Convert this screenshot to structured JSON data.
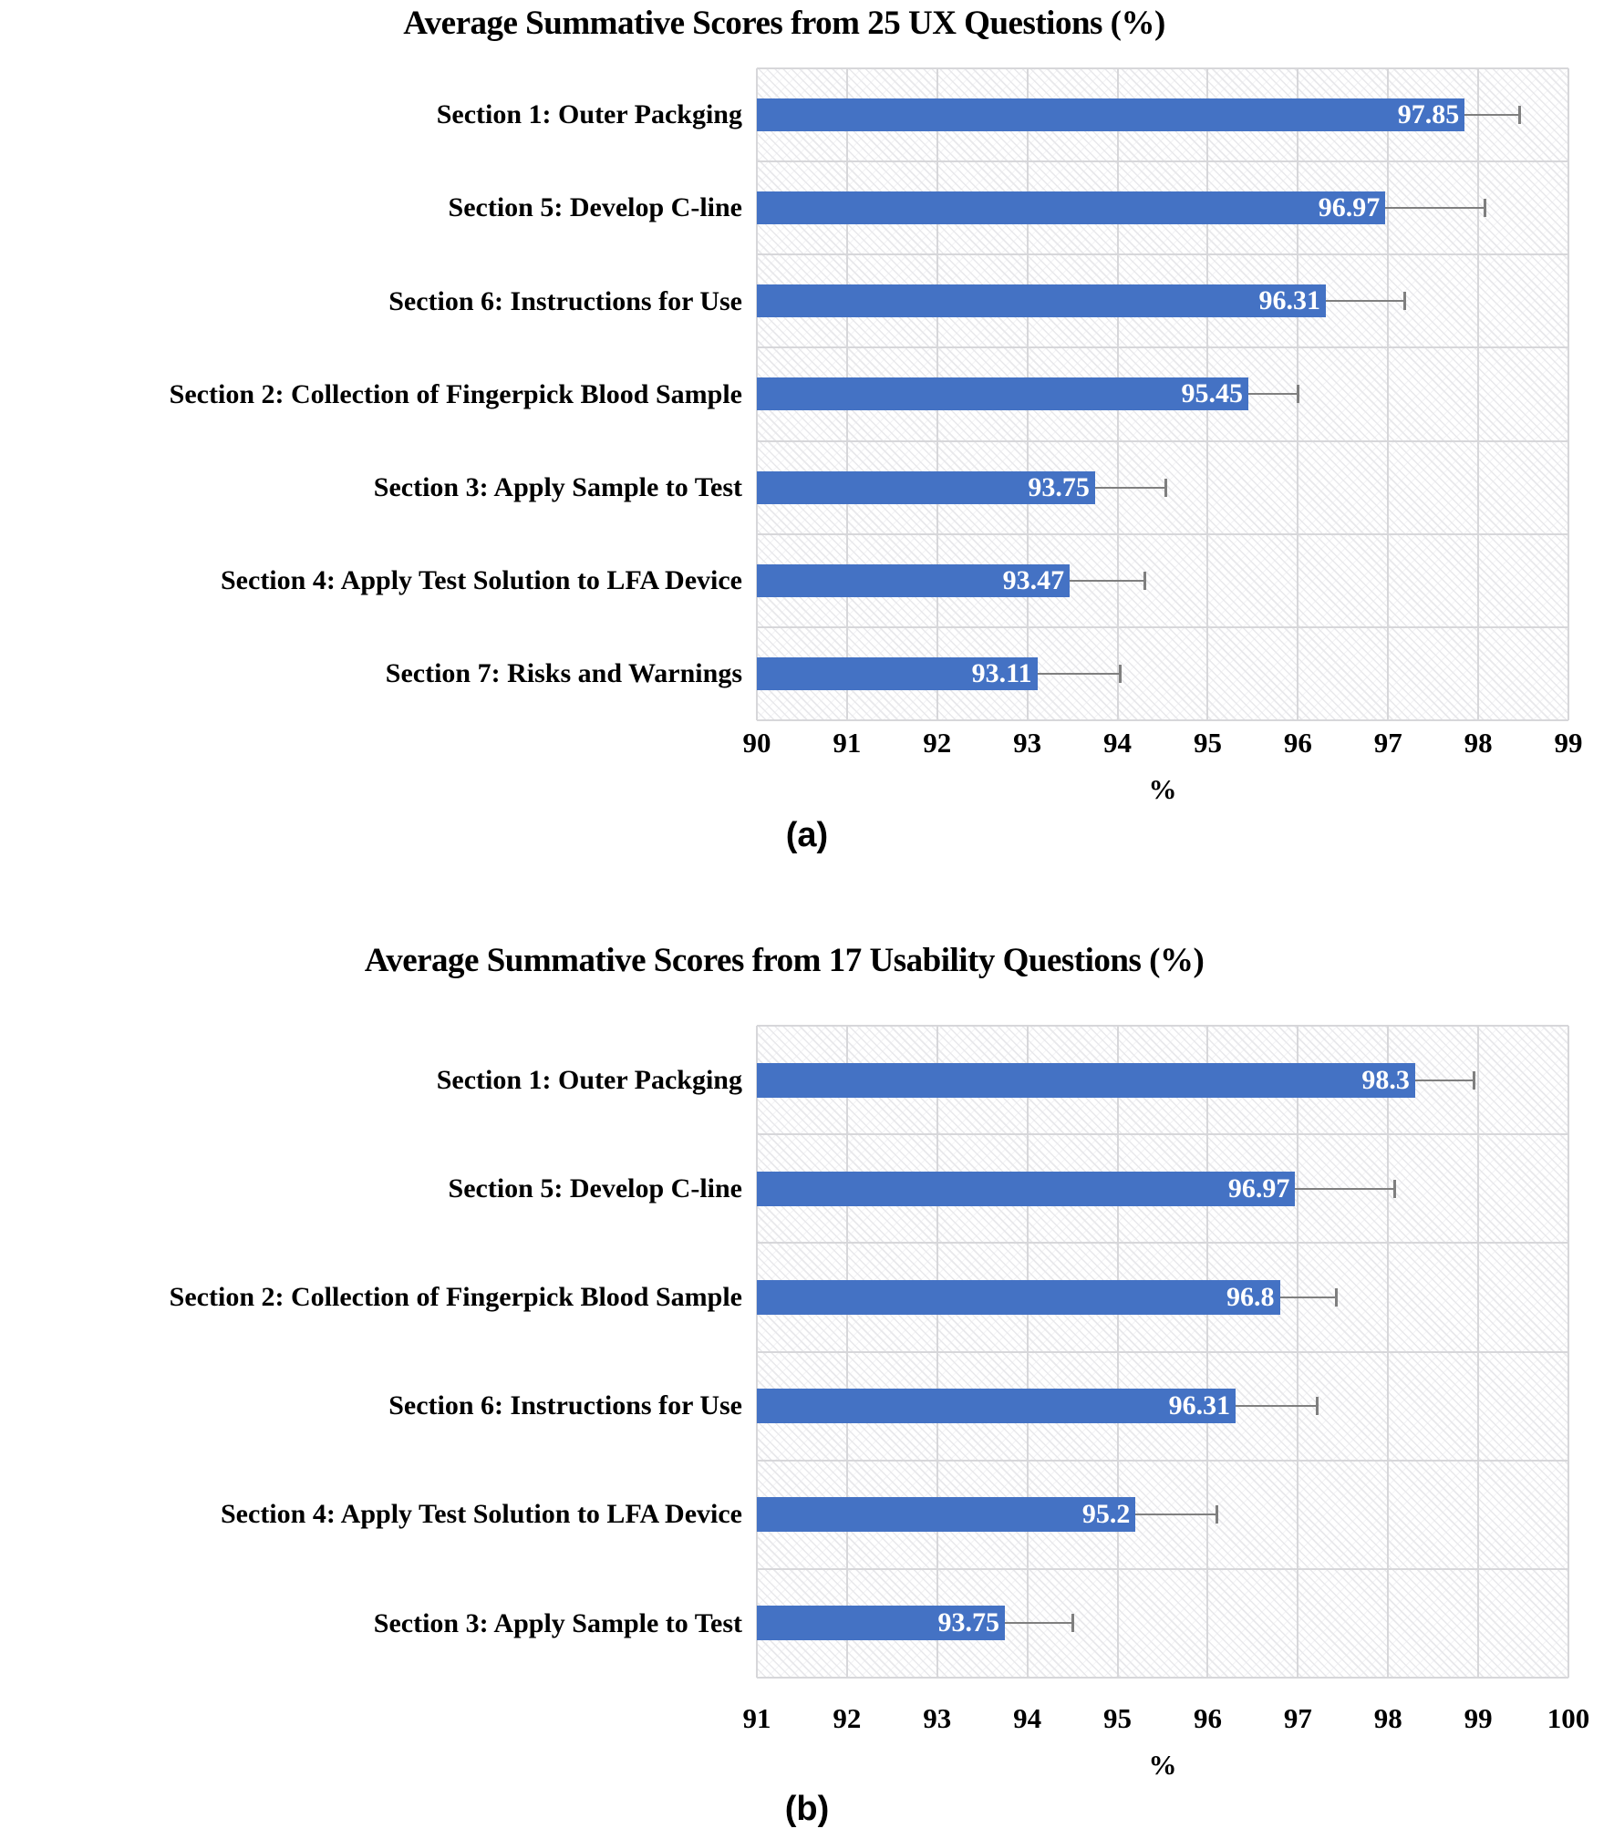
{
  "page": {
    "background": "#ffffff"
  },
  "chart_data": [
    {
      "type": "bar",
      "orientation": "horizontal",
      "title": "Average Summative Scores from 25 UX Questions (%)",
      "caption": "(a)",
      "xlabel": "%",
      "xlim": [
        90,
        99
      ],
      "ticks": [
        90,
        91,
        92,
        93,
        94,
        95,
        96,
        97,
        98,
        99
      ],
      "grid": true,
      "plot_hatch": true,
      "legend": "none",
      "categories": [
        "Section 1: Outer Packging",
        "Section 5: Develop C-line",
        "Section 6: Instructions for Use",
        "Section 2: Collection of Fingerpick Blood Sample",
        "Section 3: Apply Sample to Test",
        "Section 4: Apply Test Solution to LFA Device",
        "Section 7: Risks and Warnings"
      ],
      "values": [
        97.85,
        96.97,
        96.31,
        95.45,
        93.75,
        93.47,
        93.11
      ],
      "error_plus": [
        0.6,
        1.1,
        0.87,
        0.55,
        0.78,
        0.83,
        0.91
      ],
      "colors": {
        "bar": "#4472C4",
        "error": "#7f7f7f",
        "grid": "#d7d7da",
        "value_text": "#ffffff"
      }
    },
    {
      "type": "bar",
      "orientation": "horizontal",
      "title": "Average Summative Scores from 17 Usability Questions (%)",
      "caption": "(b)",
      "xlabel": "%",
      "xlim": [
        91,
        100
      ],
      "ticks": [
        91,
        92,
        93,
        94,
        95,
        96,
        97,
        98,
        99,
        100
      ],
      "grid": true,
      "plot_hatch": true,
      "legend": "none",
      "categories": [
        "Section 1: Outer Packging",
        "Section 5: Develop C-line",
        "Section 2: Collection of Fingerpick Blood Sample",
        "Section 6: Instructions for Use",
        "Section 4: Apply Test Solution to LFA Device",
        "Section 3: Apply Sample to Test"
      ],
      "values": [
        98.3,
        96.97,
        96.8,
        96.31,
        95.2,
        93.75
      ],
      "error_plus": [
        0.65,
        1.1,
        0.62,
        0.9,
        0.9,
        0.75
      ],
      "colors": {
        "bar": "#4472C4",
        "error": "#7f7f7f",
        "grid": "#d7d7da",
        "value_text": "#ffffff"
      }
    }
  ]
}
